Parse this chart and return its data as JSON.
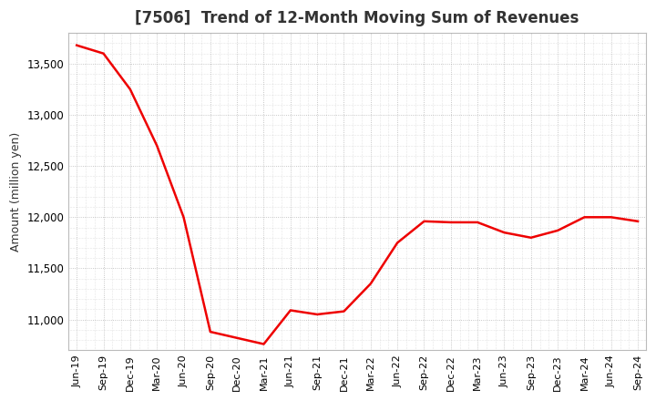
{
  "title": "[7506]  Trend of 12-Month Moving Sum of Revenues",
  "ylabel": "Amount (million yen)",
  "line_color": "#ee0000",
  "bg_color": "#ffffff",
  "plot_bg_color": "#ffffff",
  "grid_color": "#999999",
  "title_color": "#333333",
  "ylim": [
    10700,
    13800
  ],
  "yticks": [
    11000,
    11500,
    12000,
    12500,
    13000,
    13500
  ],
  "labels": [
    "Jun-19",
    "Sep-19",
    "Dec-19",
    "Mar-20",
    "Jun-20",
    "Sep-20",
    "Dec-20",
    "Mar-21",
    "Jun-21",
    "Sep-21",
    "Dec-21",
    "Mar-22",
    "Jun-22",
    "Sep-22",
    "Dec-22",
    "Mar-23",
    "Jun-23",
    "Sep-23",
    "Dec-23",
    "Mar-24",
    "Jun-24",
    "Sep-24"
  ],
  "values": [
    13680,
    13600,
    13250,
    12700,
    12000,
    10880,
    10820,
    10760,
    11090,
    11050,
    11080,
    11350,
    11750,
    11960,
    11950,
    11950,
    11850,
    11800,
    11870,
    12000,
    12000,
    11960
  ]
}
